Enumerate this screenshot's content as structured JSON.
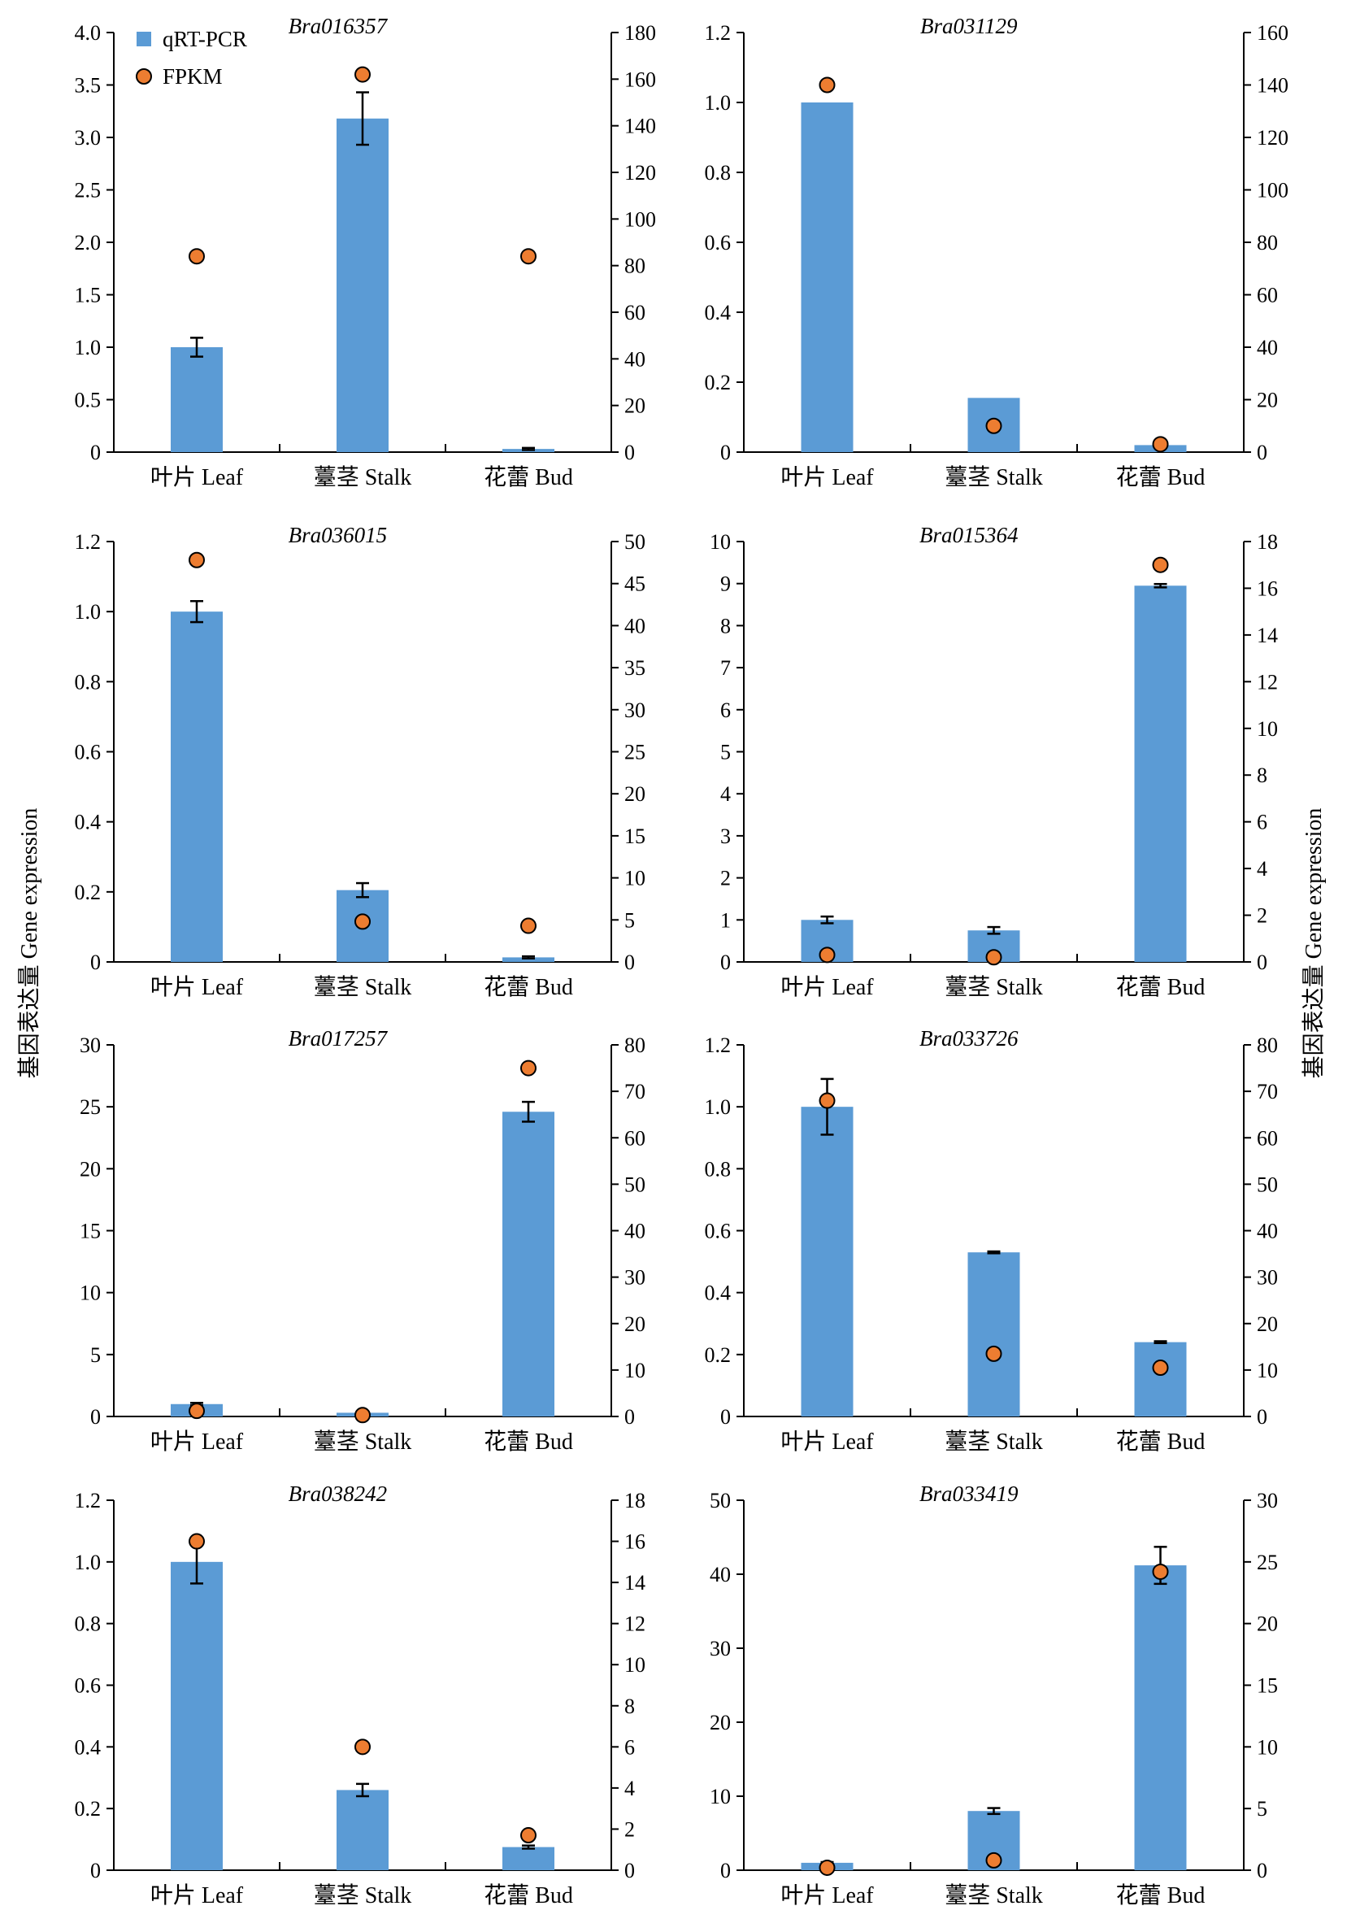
{
  "figure": {
    "side_label": "基因表达量 Gene expression",
    "legend": [
      {
        "label": "qRT-PCR",
        "marker": "bar"
      },
      {
        "label": "FPKM",
        "marker": "circle"
      }
    ],
    "colors": {
      "bar": "#5b9bd5",
      "dot": "#ed7d31",
      "stroke": "#000000"
    }
  },
  "chart_data": [
    {
      "type": "bar",
      "title": "Bra016357",
      "categories": [
        "叶片 Leaf",
        "薹茎 Stalk",
        "花蕾 Bud"
      ],
      "series": [
        {
          "name": "qRT-PCR",
          "axis": "left",
          "values": [
            1.0,
            3.18,
            0.03
          ],
          "errors": [
            0.09,
            0.25,
            0.01
          ]
        },
        {
          "name": "FPKM",
          "axis": "right",
          "values": [
            84,
            162,
            84
          ]
        }
      ],
      "ylim_left": [
        0,
        4.0
      ],
      "yticks_left": [
        "0",
        "0.5",
        "1.0",
        "1.5",
        "2.0",
        "2.5",
        "3.0",
        "3.5",
        "4.0"
      ],
      "ylim_right": [
        0,
        180
      ],
      "yticks_right": [
        "0",
        "20",
        "40",
        "60",
        "80",
        "100",
        "120",
        "140",
        "160",
        "180"
      ],
      "legend_position": "top-left"
    },
    {
      "type": "bar",
      "title": "Bra031129",
      "categories": [
        "叶片 Leaf",
        "薹茎 Stalk",
        "花蕾 Bud"
      ],
      "series": [
        {
          "name": "qRT-PCR",
          "axis": "left",
          "values": [
            1.0,
            0.155,
            0.02
          ],
          "errors": [
            0,
            0,
            0
          ]
        },
        {
          "name": "FPKM",
          "axis": "right",
          "values": [
            140,
            10,
            3
          ]
        }
      ],
      "ylim_left": [
        0,
        1.2
      ],
      "yticks_left": [
        "0",
        "0.2",
        "0.4",
        "0.6",
        "0.8",
        "1.0",
        "1.2"
      ],
      "ylim_right": [
        0,
        160
      ],
      "yticks_right": [
        "0",
        "20",
        "40",
        "60",
        "80",
        "100",
        "120",
        "140",
        "160"
      ]
    },
    {
      "type": "bar",
      "title": "Bra036015",
      "categories": [
        "叶片 Leaf",
        "薹茎 Stalk",
        "花蕾 Bud"
      ],
      "series": [
        {
          "name": "qRT-PCR",
          "axis": "left",
          "values": [
            1.0,
            0.205,
            0.013
          ],
          "errors": [
            0.03,
            0.02,
            0.003
          ]
        },
        {
          "name": "FPKM",
          "axis": "right",
          "values": [
            47.8,
            4.8,
            4.3
          ]
        }
      ],
      "ylim_left": [
        0,
        1.2
      ],
      "yticks_left": [
        "0",
        "0.2",
        "0.4",
        "0.6",
        "0.8",
        "1.0",
        "1.2"
      ],
      "ylim_right": [
        0,
        50
      ],
      "yticks_right": [
        "0",
        "5",
        "10",
        "15",
        "20",
        "25",
        "30",
        "35",
        "40",
        "45",
        "50"
      ]
    },
    {
      "type": "bar",
      "title": "Bra015364",
      "categories": [
        "叶片 Leaf",
        "薹茎 Stalk",
        "花蕾 Bud"
      ],
      "series": [
        {
          "name": "qRT-PCR",
          "axis": "left",
          "values": [
            1.0,
            0.75,
            8.95
          ],
          "errors": [
            0.08,
            0.08,
            0.04
          ]
        },
        {
          "name": "FPKM",
          "axis": "right",
          "values": [
            0.3,
            0.2,
            17
          ]
        }
      ],
      "ylim_left": [
        0,
        10
      ],
      "yticks_left": [
        "0",
        "1",
        "2",
        "3",
        "4",
        "5",
        "6",
        "7",
        "8",
        "9",
        "10"
      ],
      "ylim_right": [
        0,
        18
      ],
      "yticks_right": [
        "0",
        "2",
        "4",
        "6",
        "8",
        "10",
        "12",
        "14",
        "16",
        "18"
      ]
    },
    {
      "type": "bar",
      "title": "Bra017257",
      "categories": [
        "叶片 Leaf",
        "薹茎 Stalk",
        "花蕾 Bud"
      ],
      "series": [
        {
          "name": "qRT-PCR",
          "axis": "left",
          "values": [
            1.0,
            0.3,
            24.6
          ],
          "errors": [
            0.1,
            0.05,
            0.8
          ]
        },
        {
          "name": "FPKM",
          "axis": "right",
          "values": [
            1.2,
            0.3,
            75
          ]
        }
      ],
      "ylim_left": [
        0,
        30
      ],
      "yticks_left": [
        "0",
        "5",
        "10",
        "15",
        "20",
        "25",
        "30"
      ],
      "ylim_right": [
        0,
        80
      ],
      "yticks_right": [
        "0",
        "10",
        "20",
        "30",
        "40",
        "50",
        "60",
        "70",
        "80"
      ]
    },
    {
      "type": "bar",
      "title": "Bra033726",
      "categories": [
        "叶片 Leaf",
        "薹茎 Stalk",
        "花蕾 Bud"
      ],
      "series": [
        {
          "name": "qRT-PCR",
          "axis": "left",
          "values": [
            1.0,
            0.53,
            0.24
          ],
          "errors": [
            0.09,
            0.003,
            0.003
          ]
        },
        {
          "name": "FPKM",
          "axis": "right",
          "values": [
            68,
            13.5,
            10.5
          ]
        }
      ],
      "ylim_left": [
        0,
        1.2
      ],
      "yticks_left": [
        "0",
        "0.2",
        "0.4",
        "0.6",
        "0.8",
        "1.0",
        "1.2"
      ],
      "ylim_right": [
        0,
        80
      ],
      "yticks_right": [
        "0",
        "10",
        "20",
        "30",
        "40",
        "50",
        "60",
        "70",
        "80"
      ]
    },
    {
      "type": "bar",
      "title": "Bra038242",
      "categories": [
        "叶片 Leaf",
        "薹茎 Stalk",
        "花蕾 Bud"
      ],
      "series": [
        {
          "name": "qRT-PCR",
          "axis": "left",
          "values": [
            1.0,
            0.26,
            0.075
          ],
          "errors": [
            0.07,
            0.02,
            0.005
          ]
        },
        {
          "name": "FPKM",
          "axis": "right",
          "values": [
            16,
            6,
            1.7
          ]
        }
      ],
      "ylim_left": [
        0,
        1.2
      ],
      "yticks_left": [
        "0",
        "0.2",
        "0.4",
        "0.6",
        "0.8",
        "1.0",
        "1.2"
      ],
      "ylim_right": [
        0,
        18
      ],
      "yticks_right": [
        "0",
        "2",
        "4",
        "6",
        "8",
        "10",
        "12",
        "14",
        "16",
        "18"
      ]
    },
    {
      "type": "bar",
      "title": "Bra033419",
      "categories": [
        "叶片 Leaf",
        "薹茎 Stalk",
        "花蕾 Bud"
      ],
      "series": [
        {
          "name": "qRT-PCR",
          "axis": "left",
          "values": [
            1.0,
            8.0,
            41.2
          ],
          "errors": [
            0.1,
            0.4,
            2.5
          ]
        },
        {
          "name": "FPKM",
          "axis": "right",
          "values": [
            0.2,
            0.8,
            24.2
          ]
        }
      ],
      "ylim_left": [
        0,
        50
      ],
      "yticks_left": [
        "0",
        "10",
        "20",
        "30",
        "40",
        "50"
      ],
      "ylim_right": [
        0,
        30
      ],
      "yticks_right": [
        "0",
        "5",
        "10",
        "15",
        "20",
        "25",
        "30"
      ]
    }
  ]
}
